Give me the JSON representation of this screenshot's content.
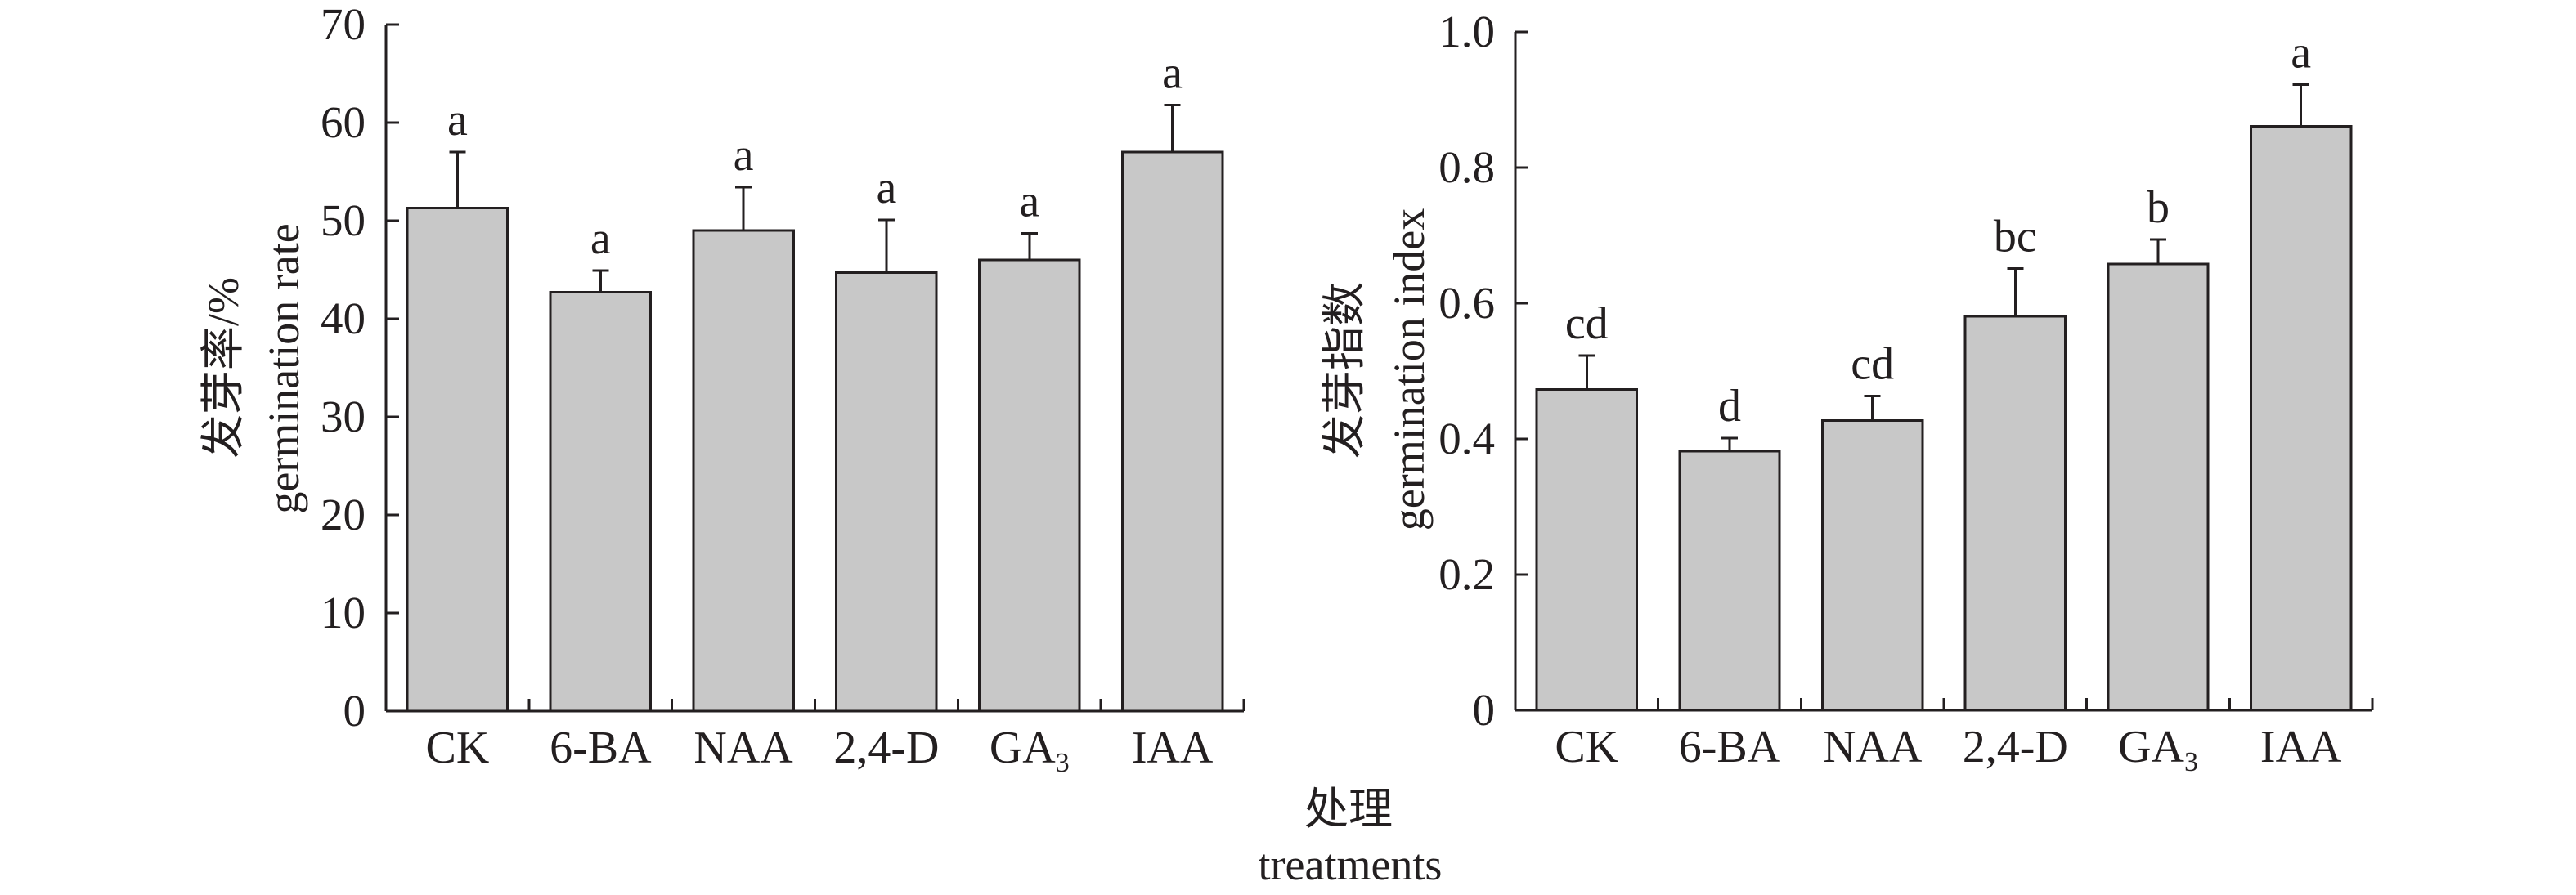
{
  "figure": {
    "xlabel_zh": "处理",
    "xlabel_en": "treatments"
  },
  "colors": {
    "bar_fill": "#c8c8c8",
    "stroke": "#231f20",
    "text": "#231f20",
    "background": "#ffffff"
  },
  "chart_data": [
    {
      "type": "bar",
      "title": "",
      "categories": [
        "CK",
        "6-BA",
        "NAA",
        "2,4-D",
        "GA3",
        "IAA"
      ],
      "category_labels": [
        {
          "text": "CK",
          "sub": ""
        },
        {
          "text": "6-BA",
          "sub": ""
        },
        {
          "text": "NAA",
          "sub": ""
        },
        {
          "text": "2,4-D",
          "sub": ""
        },
        {
          "text": "GA",
          "sub": "3"
        },
        {
          "text": "IAA",
          "sub": ""
        }
      ],
      "values": [
        51.3,
        42.7,
        49.0,
        44.7,
        46.0,
        57.0
      ],
      "errors": [
        5.7,
        2.2,
        4.4,
        5.4,
        2.7,
        4.8
      ],
      "significance_letters": [
        "a",
        "a",
        "a",
        "a",
        "a",
        "a"
      ],
      "ylabel_zh": "发芽率/%",
      "ylabel_en": "germination rate",
      "xlabel": "处理 treatments",
      "ylim": [
        0,
        70
      ],
      "yticks": [
        0,
        10,
        20,
        30,
        40,
        50,
        60,
        70
      ],
      "ytick_labels": [
        "0",
        "10",
        "20",
        "30",
        "40",
        "50",
        "60",
        "70"
      ],
      "grid": false,
      "legend": "none"
    },
    {
      "type": "bar",
      "title": "",
      "categories": [
        "CK",
        "6-BA",
        "NAA",
        "2,4-D",
        "GA3",
        "IAA"
      ],
      "category_labels": [
        {
          "text": "CK",
          "sub": ""
        },
        {
          "text": "6-BA",
          "sub": ""
        },
        {
          "text": "NAA",
          "sub": ""
        },
        {
          "text": "2,4-D",
          "sub": ""
        },
        {
          "text": "GA",
          "sub": "3"
        },
        {
          "text": "IAA",
          "sub": ""
        }
      ],
      "values": [
        0.473,
        0.382,
        0.427,
        0.581,
        0.658,
        0.861
      ],
      "errors": [
        0.05,
        0.019,
        0.036,
        0.07,
        0.036,
        0.061
      ],
      "significance_letters": [
        "cd",
        "d",
        "cd",
        "bc",
        "b",
        "a"
      ],
      "ylabel_zh": "发芽指数",
      "ylabel_en": "germination index",
      "xlabel": "处理 treatments",
      "ylim": [
        0,
        1.0
      ],
      "yticks": [
        0,
        0.2,
        0.4,
        0.6,
        0.8,
        1.0
      ],
      "ytick_labels": [
        "0",
        "0.2",
        "0.4",
        "0.6",
        "0.8",
        "1.0"
      ],
      "grid": false,
      "legend": "none"
    }
  ]
}
